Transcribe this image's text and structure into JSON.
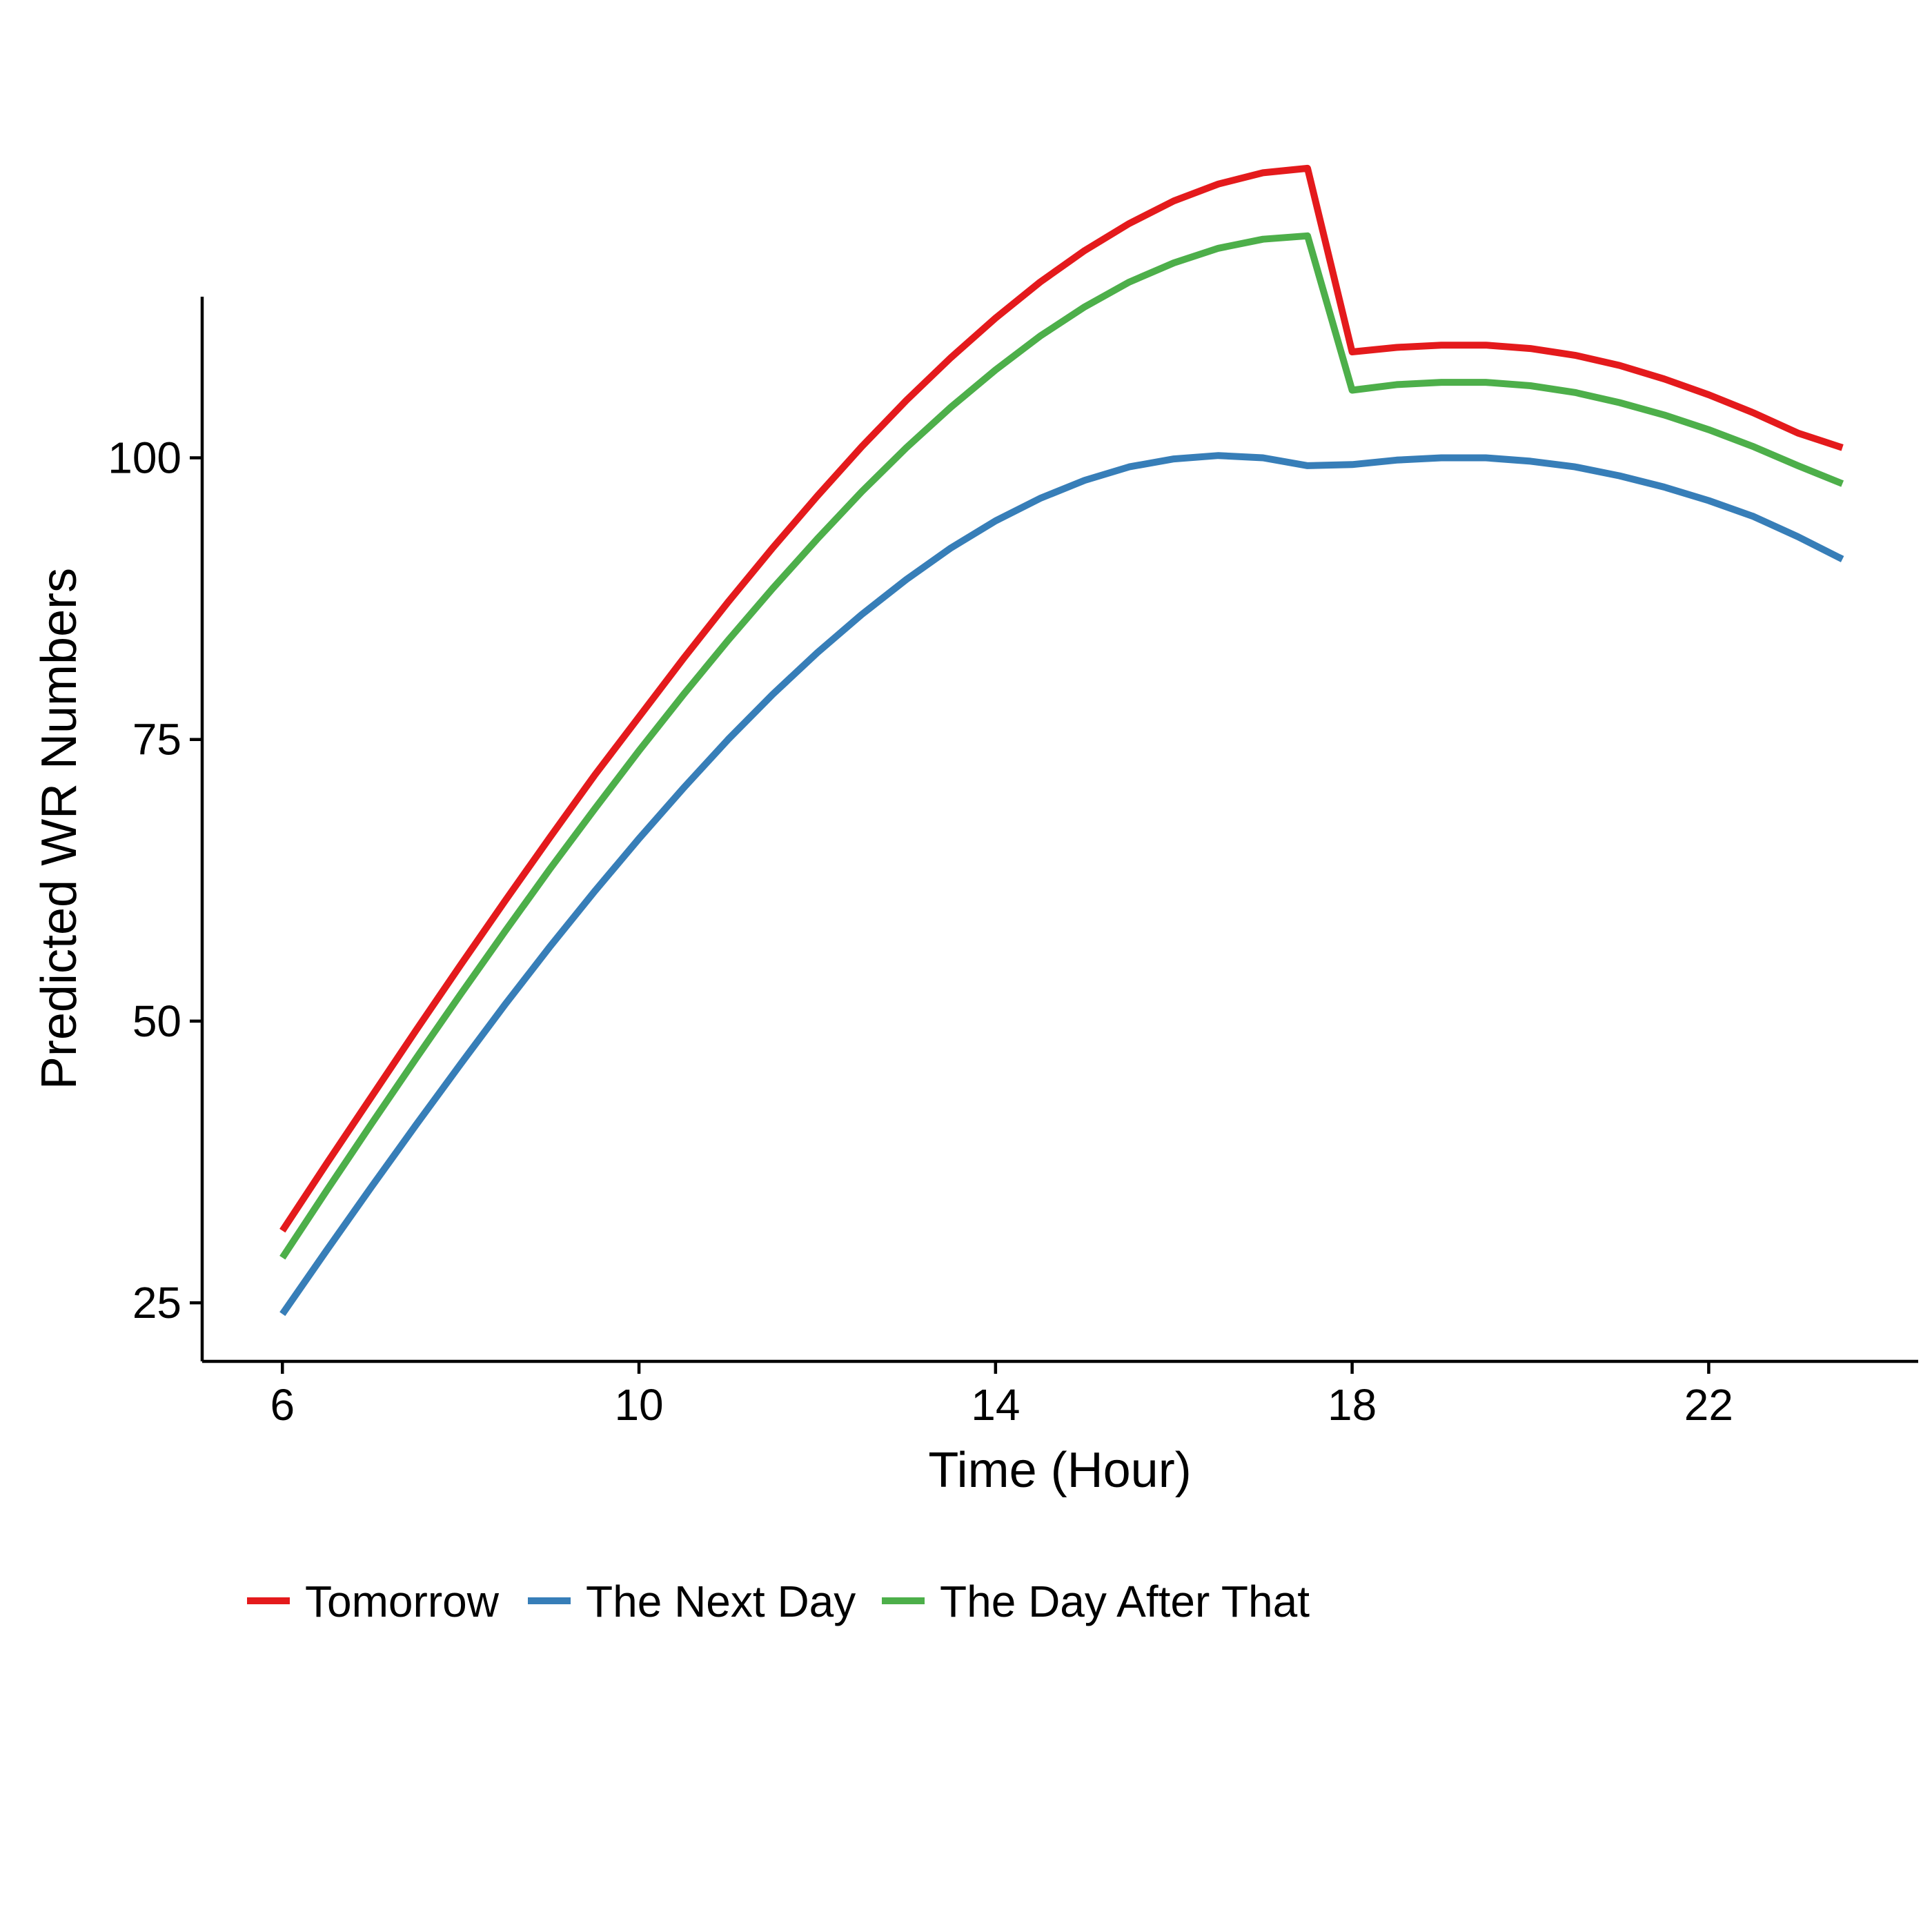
{
  "chart_data": {
    "type": "line",
    "title": "",
    "xlabel": "Time (Hour)",
    "ylabel": "Predicted WR Numbers",
    "xlim": [
      5.1,
      24.35
    ],
    "ylim": [
      19.8,
      114.3
    ],
    "xticks": [
      6,
      10,
      14,
      18,
      22
    ],
    "yticks": [
      25,
      50,
      75,
      100
    ],
    "grid": false,
    "legend_position": "bottom-left",
    "x": [
      6,
      6.5,
      7,
      7.5,
      8,
      8.5,
      9,
      9.5,
      10,
      10.5,
      11,
      11.5,
      12,
      12.5,
      13,
      13.5,
      14,
      14.5,
      15,
      15.5,
      16,
      16.5,
      17,
      17.5,
      18,
      18.5,
      19,
      19.5,
      20,
      20.5,
      21,
      21.5,
      22,
      22.5,
      23,
      23.5
    ],
    "series": [
      {
        "name": "Tomorrow",
        "color": "#E41A1C",
        "values": [
          31.4,
          37.4,
          43.3,
          49.2,
          55.0,
          60.7,
          66.3,
          71.8,
          77.0,
          82.2,
          87.2,
          92.0,
          96.6,
          101.0,
          105.1,
          108.9,
          112.4,
          115.6,
          118.4,
          120.8,
          122.8,
          124.3,
          125.3,
          125.7,
          109.4,
          109.8,
          110.0,
          110.0,
          109.7,
          109.1,
          108.2,
          107.0,
          105.6,
          104.0,
          102.2,
          100.9
        ]
      },
      {
        "name": "The Next Day",
        "color": "#377EB8",
        "values": [
          24.0,
          29.7,
          35.3,
          40.8,
          46.2,
          51.5,
          56.6,
          61.5,
          66.2,
          70.7,
          75.0,
          79.0,
          82.7,
          86.1,
          89.2,
          92.0,
          94.4,
          96.4,
          98.0,
          99.2,
          99.9,
          100.2,
          100.0,
          99.3,
          99.4,
          99.8,
          100.0,
          100.0,
          99.7,
          99.2,
          98.4,
          97.4,
          96.2,
          94.8,
          93.0,
          91.0
        ]
      },
      {
        "name": "The Day After That",
        "color": "#4DAF4A",
        "values": [
          29.0,
          35.0,
          40.9,
          46.7,
          52.4,
          58.0,
          63.5,
          68.8,
          74.0,
          79.0,
          83.8,
          88.4,
          92.8,
          97.0,
          100.9,
          104.5,
          107.8,
          110.8,
          113.4,
          115.6,
          117.3,
          118.6,
          119.4,
          119.7,
          106.0,
          106.5,
          106.7,
          106.7,
          106.4,
          105.8,
          104.9,
          103.8,
          102.5,
          101.0,
          99.3,
          97.7
        ]
      }
    ]
  }
}
